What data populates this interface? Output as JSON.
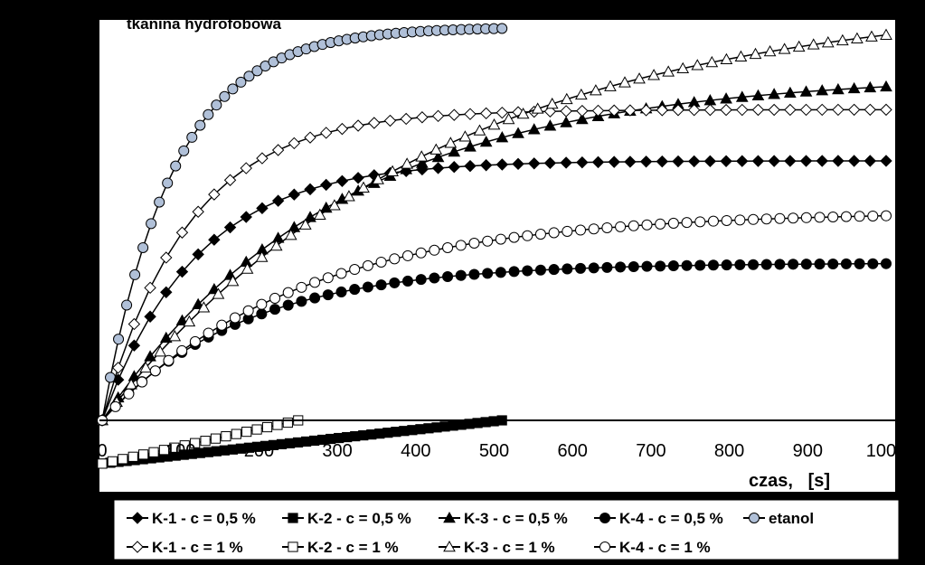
{
  "chart_data": {
    "type": "line",
    "title": "tkanina hydrofobowa",
    "xlabel": "czas,   [s]",
    "ylabel": "",
    "x_ticks": [
      "0",
      "100",
      "200",
      "300",
      "400",
      "500",
      "600",
      "700",
      "800",
      "900",
      "1000"
    ],
    "xlim": [
      0,
      1000
    ],
    "ylim": [
      -80,
      500
    ],
    "grid": false,
    "legend_position": "bottom",
    "series": [
      {
        "name": "K-1 - c = 0,5 %",
        "marker": "diamond",
        "fill": "#000000",
        "x_max": 1000,
        "plateau": 330,
        "tau": 120,
        "points": 50
      },
      {
        "name": "K-2 - c = 0,5 %",
        "marker": "square",
        "fill": "#000000",
        "x_max": 510,
        "plateau": 0,
        "tau": 0,
        "points": 50
      },
      {
        "name": "K-3 - c = 0,5 %",
        "marker": "triangle",
        "fill": "#000000",
        "x_max": 1000,
        "plateau": 440,
        "tau": 300,
        "points": 50
      },
      {
        "name": "K-4 - c = 0,5 %",
        "marker": "circle",
        "fill": "#000000",
        "x_max": 1000,
        "plateau": 200,
        "tau": 180,
        "points": 60
      },
      {
        "name": "etanol",
        "marker": "circle",
        "fill": "#b0c0d8",
        "x_max": 510,
        "plateau": 500,
        "tau": 90,
        "points": 50
      },
      {
        "name": "K-1 - c = 1 %",
        "marker": "diamond",
        "fill": "#ffffff",
        "x_max": 1000,
        "plateau": 395,
        "tau": 110,
        "points": 50
      },
      {
        "name": "K-2 - c = 1 %",
        "marker": "square",
        "fill": "#ffffff",
        "x_max": 250,
        "plateau": 0,
        "tau": 0,
        "points": 20
      },
      {
        "name": "K-3 - c = 1 %",
        "marker": "triangle",
        "fill": "#ffffff",
        "x_max": 1000,
        "plateau": 540,
        "tau": 420,
        "points": 55
      },
      {
        "name": "K-4 - c = 1 %",
        "marker": "circle",
        "fill": "#ffffff",
        "x_max": 1000,
        "plateau": 265,
        "tau": 250,
        "points": 60
      }
    ]
  }
}
